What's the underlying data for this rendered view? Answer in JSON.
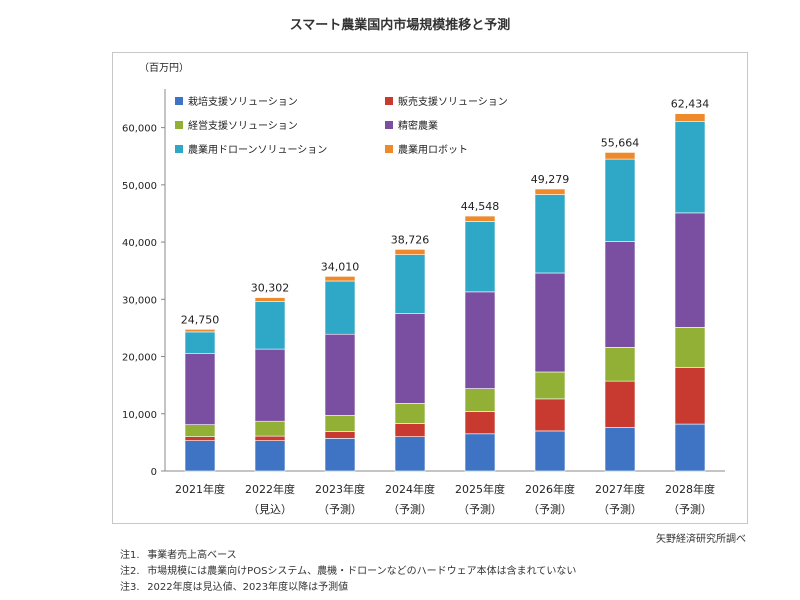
{
  "chart_data": {
    "type": "bar",
    "stacked": true,
    "title": "スマート農業国内市場規模推移と予測",
    "ylabel": "（百万円）",
    "ylim": [
      0,
      65000
    ],
    "yticks": [
      0,
      10000,
      20000,
      30000,
      40000,
      50000,
      60000
    ],
    "ytick_labels": [
      "0",
      "10,000",
      "20,000",
      "30,000",
      "40,000",
      "50,000",
      "60,000"
    ],
    "categories": [
      {
        "year": "2021年度",
        "sub": ""
      },
      {
        "year": "2022年度",
        "sub": "（見込）"
      },
      {
        "year": "2023年度",
        "sub": "（予測）"
      },
      {
        "year": "2024年度",
        "sub": "（予測）"
      },
      {
        "year": "2025年度",
        "sub": "（予測）"
      },
      {
        "year": "2026年度",
        "sub": "（予測）"
      },
      {
        "year": "2027年度",
        "sub": "（予測）"
      },
      {
        "year": "2028年度",
        "sub": "（予測）"
      }
    ],
    "series": [
      {
        "name": "栽培支援ソリューション",
        "color": "#3f74c4",
        "values": [
          5300,
          5300,
          5700,
          6000,
          6500,
          7000,
          7600,
          8200
        ]
      },
      {
        "name": "販売支援ソリューション",
        "color": "#c83a2f",
        "values": [
          700,
          800,
          1200,
          2300,
          3900,
          5600,
          8100,
          9900
        ]
      },
      {
        "name": "経営支援ソリューション",
        "color": "#92b035",
        "values": [
          2100,
          2600,
          2800,
          3500,
          4000,
          4700,
          5900,
          7000
        ]
      },
      {
        "name": "精密農業",
        "color": "#7a4ea0",
        "values": [
          12400,
          12600,
          14200,
          15700,
          16900,
          17300,
          18500,
          20000
        ]
      },
      {
        "name": "農業用ドローンソリューション",
        "color": "#2fa7c6",
        "values": [
          3800,
          8300,
          9300,
          10300,
          12300,
          13700,
          14400,
          16000
        ]
      },
      {
        "name": "農業用ロボット",
        "color": "#ee8a2b",
        "values": [
          450,
          702,
          810,
          926,
          948,
          979,
          1164,
          1334
        ]
      }
    ],
    "totals": [
      24750,
      30302,
      34010,
      38726,
      44548,
      49279,
      55664,
      62434
    ],
    "total_labels": [
      "24,750",
      "30,302",
      "34,010",
      "38,726",
      "44,548",
      "49,279",
      "55,664",
      "62,434"
    ],
    "legend_position": "top-left inside plot, 2 columns"
  },
  "source": "矢野経済研究所調べ",
  "notes": [
    {
      "label": "注1.",
      "text": "事業者売上高ベース"
    },
    {
      "label": "注2.",
      "text": "市場規模には農業向けPOSシステム、農機・ドローンなどのハードウェア本体は含まれていない"
    },
    {
      "label": "注3.",
      "text": "2022年度は見込値、2023年度以降は予測値"
    }
  ]
}
